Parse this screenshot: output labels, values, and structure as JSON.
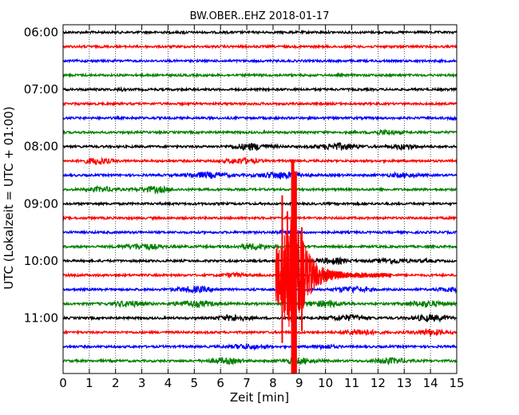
{
  "chart_data": {
    "type": "line",
    "subtype": "helicorder (seismogram drum plot)",
    "title": "BW.OBER..EHZ 2018-01-17",
    "xlabel": "Zeit  [min]",
    "ylabel": "UTC (Lokalzeit = UTC + 01:00)",
    "xlim": [
      0,
      15
    ],
    "x_ticks": [
      0,
      1,
      2,
      3,
      4,
      5,
      6,
      7,
      8,
      9,
      10,
      11,
      12,
      13,
      14,
      15
    ],
    "x_tick_labels": [
      "0",
      "1",
      "2",
      "3",
      "4",
      "5",
      "6",
      "7",
      "8",
      "9",
      "10",
      "11",
      "12",
      "13",
      "14",
      "15"
    ],
    "y_tick_labels": [
      "06:00",
      "07:00",
      "08:00",
      "09:00",
      "10:00",
      "11:00"
    ],
    "trace_interval_minutes": 15,
    "grid": "vertical dotted at each minute",
    "trace_colors": [
      "#000000",
      "#ff0000",
      "#0000ff",
      "#008000"
    ],
    "series": [
      {
        "start": "06:00",
        "color": "#000000",
        "bursts": [
          [
            4.6,
            1.8,
            0.05
          ]
        ]
      },
      {
        "start": "06:15",
        "color": "#ff0000",
        "bursts": []
      },
      {
        "start": "06:30",
        "color": "#0000ff",
        "bursts": []
      },
      {
        "start": "06:45",
        "color": "#008000",
        "bursts": []
      },
      {
        "start": "07:00",
        "color": "#000000",
        "bursts": [
          [
            2.2,
            1.4,
            0.1
          ]
        ]
      },
      {
        "start": "07:15",
        "color": "#ff0000",
        "bursts": []
      },
      {
        "start": "07:30",
        "color": "#0000ff",
        "bursts": [
          [
            14.9,
            1.5,
            0.2
          ]
        ]
      },
      {
        "start": "07:45",
        "color": "#008000",
        "bursts": [
          [
            12.3,
            2.2,
            0.5
          ]
        ]
      },
      {
        "start": "08:00",
        "color": "#000000",
        "bursts": [
          [
            7.2,
            3.5,
            0.7
          ],
          [
            10.5,
            3.5,
            0.7
          ],
          [
            13.0,
            2.5,
            0.5
          ]
        ]
      },
      {
        "start": "08:15",
        "color": "#ff0000",
        "bursts": [
          [
            1.3,
            3.5,
            0.5
          ],
          [
            6.8,
            3.0,
            0.6
          ]
        ]
      },
      {
        "start": "08:30",
        "color": "#0000ff",
        "bursts": [
          [
            5.5,
            3.0,
            0.8
          ],
          [
            8.3,
            3.5,
            0.8
          ],
          [
            13.0,
            2.0,
            0.6
          ]
        ]
      },
      {
        "start": "08:45",
        "color": "#008000",
        "bursts": [
          [
            1.5,
            2.5,
            0.5
          ],
          [
            3.5,
            3.0,
            0.6
          ]
        ]
      },
      {
        "start": "09:00",
        "color": "#000000",
        "bursts": []
      },
      {
        "start": "09:15",
        "color": "#ff0000",
        "bursts": []
      },
      {
        "start": "09:30",
        "color": "#0000ff",
        "bursts": [
          [
            8.5,
            1.5,
            0.4
          ]
        ]
      },
      {
        "start": "09:45",
        "color": "#008000",
        "bursts": [
          [
            3.0,
            3.0,
            0.7
          ],
          [
            7.3,
            3.0,
            0.6
          ]
        ]
      },
      {
        "start": "10:00",
        "color": "#000000",
        "bursts": [
          [
            10.3,
            3.0,
            0.6
          ],
          [
            12.5,
            2.5,
            0.6
          ],
          [
            13.8,
            1.0,
            0.4
          ]
        ]
      },
      {
        "start": "10:15",
        "color": "#ff0000",
        "bursts": [
          [
            6.5,
            2.0,
            0.4
          ]
        ]
      },
      {
        "start": "10:30",
        "color": "#0000ff",
        "bursts": [
          [
            5.0,
            3.0,
            0.7
          ],
          [
            11.0,
            3.0,
            0.6
          ],
          [
            14.8,
            2.0,
            0.5
          ]
        ]
      },
      {
        "start": "10:45",
        "color": "#008000",
        "bursts": [
          [
            2.5,
            3.0,
            0.6
          ],
          [
            5.0,
            3.0,
            0.8
          ],
          [
            10.0,
            3.0,
            0.7
          ],
          [
            13.8,
            3.0,
            0.7
          ]
        ]
      },
      {
        "start": "11:00",
        "color": "#000000",
        "bursts": [
          [
            6.5,
            3.0,
            0.6
          ],
          [
            10.8,
            3.0,
            0.7
          ],
          [
            14.0,
            3.0,
            0.7
          ]
        ]
      },
      {
        "start": "11:15",
        "color": "#ff0000",
        "bursts": [
          [
            11.3,
            3.0,
            0.6
          ],
          [
            14.0,
            3.0,
            0.6
          ]
        ]
      },
      {
        "start": "11:30",
        "color": "#0000ff",
        "bursts": [
          [
            7.0,
            2.5,
            0.6
          ],
          [
            10.0,
            2.0,
            0.4
          ]
        ]
      },
      {
        "start": "11:45",
        "color": "#008000",
        "bursts": [
          [
            6.2,
            3.0,
            0.6
          ],
          [
            9.0,
            3.0,
            0.6
          ],
          [
            12.5,
            3.0,
            0.6
          ]
        ]
      }
    ],
    "event": {
      "trace_start": "10:15",
      "color": "#ff0000",
      "onset_min": 8.1,
      "peak_min": 8.8,
      "coda_end_min": 12.5,
      "description": "large local earthquake; clipped waveform spanning many traces"
    }
  }
}
